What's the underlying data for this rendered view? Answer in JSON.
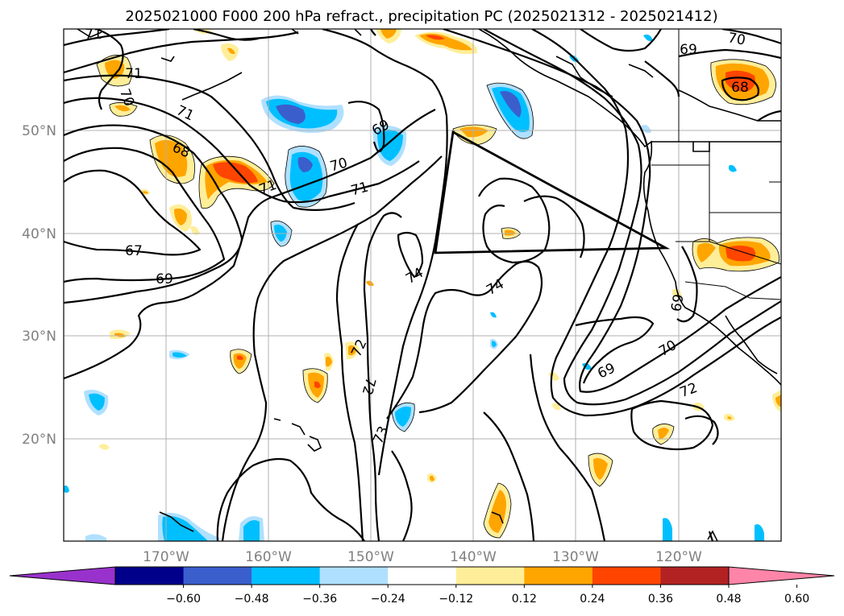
{
  "title": "2025021000 F000 200 hPa refract., precipitation PC (2025021312 - 2025021412)",
  "map": {
    "extent": {
      "lon": [
        -180,
        -110
      ],
      "lat": [
        10,
        60
      ]
    },
    "lat_labels": [
      "50°N",
      "40°N",
      "30°N",
      "20°N"
    ],
    "lat_values": [
      50,
      40,
      30,
      20
    ],
    "lon_labels": [
      "170°W",
      "160°W",
      "150°W",
      "140°W",
      "130°W",
      "120°W"
    ],
    "lon_values": [
      -170,
      -160,
      -150,
      -140,
      -130,
      -120
    ],
    "grid": true,
    "contour_labels": [
      "71",
      "71",
      "70",
      "71",
      "68",
      "67",
      "69",
      "71",
      "70",
      "71",
      "69",
      "74",
      "74",
      "72",
      "72",
      "73",
      "69",
      "70",
      "69",
      "72",
      "69",
      "70",
      "68"
    ],
    "colors": {
      "pos": [
        "#ffee99",
        "#ffa500",
        "#ff4500",
        "#b22222",
        "#ff85a8"
      ],
      "neg": [
        "#b0e0ff",
        "#00bfff",
        "#3a5fcd",
        "#00008b",
        "#9932cc"
      ],
      "contour": "#000000",
      "grid": "#b0b0b0"
    }
  },
  "colorbar": {
    "ticks": [
      "−0.60",
      "−0.48",
      "−0.36",
      "−0.24",
      "−0.12",
      "0.12",
      "0.24",
      "0.36",
      "0.48",
      "0.60"
    ],
    "colors": [
      "#9932cc",
      "#00008b",
      "#3a5fcd",
      "#00bfff",
      "#b0e0ff",
      "#ffffff",
      "#ffee99",
      "#ffa500",
      "#ff4500",
      "#b22222",
      "#ff85a8"
    ]
  }
}
